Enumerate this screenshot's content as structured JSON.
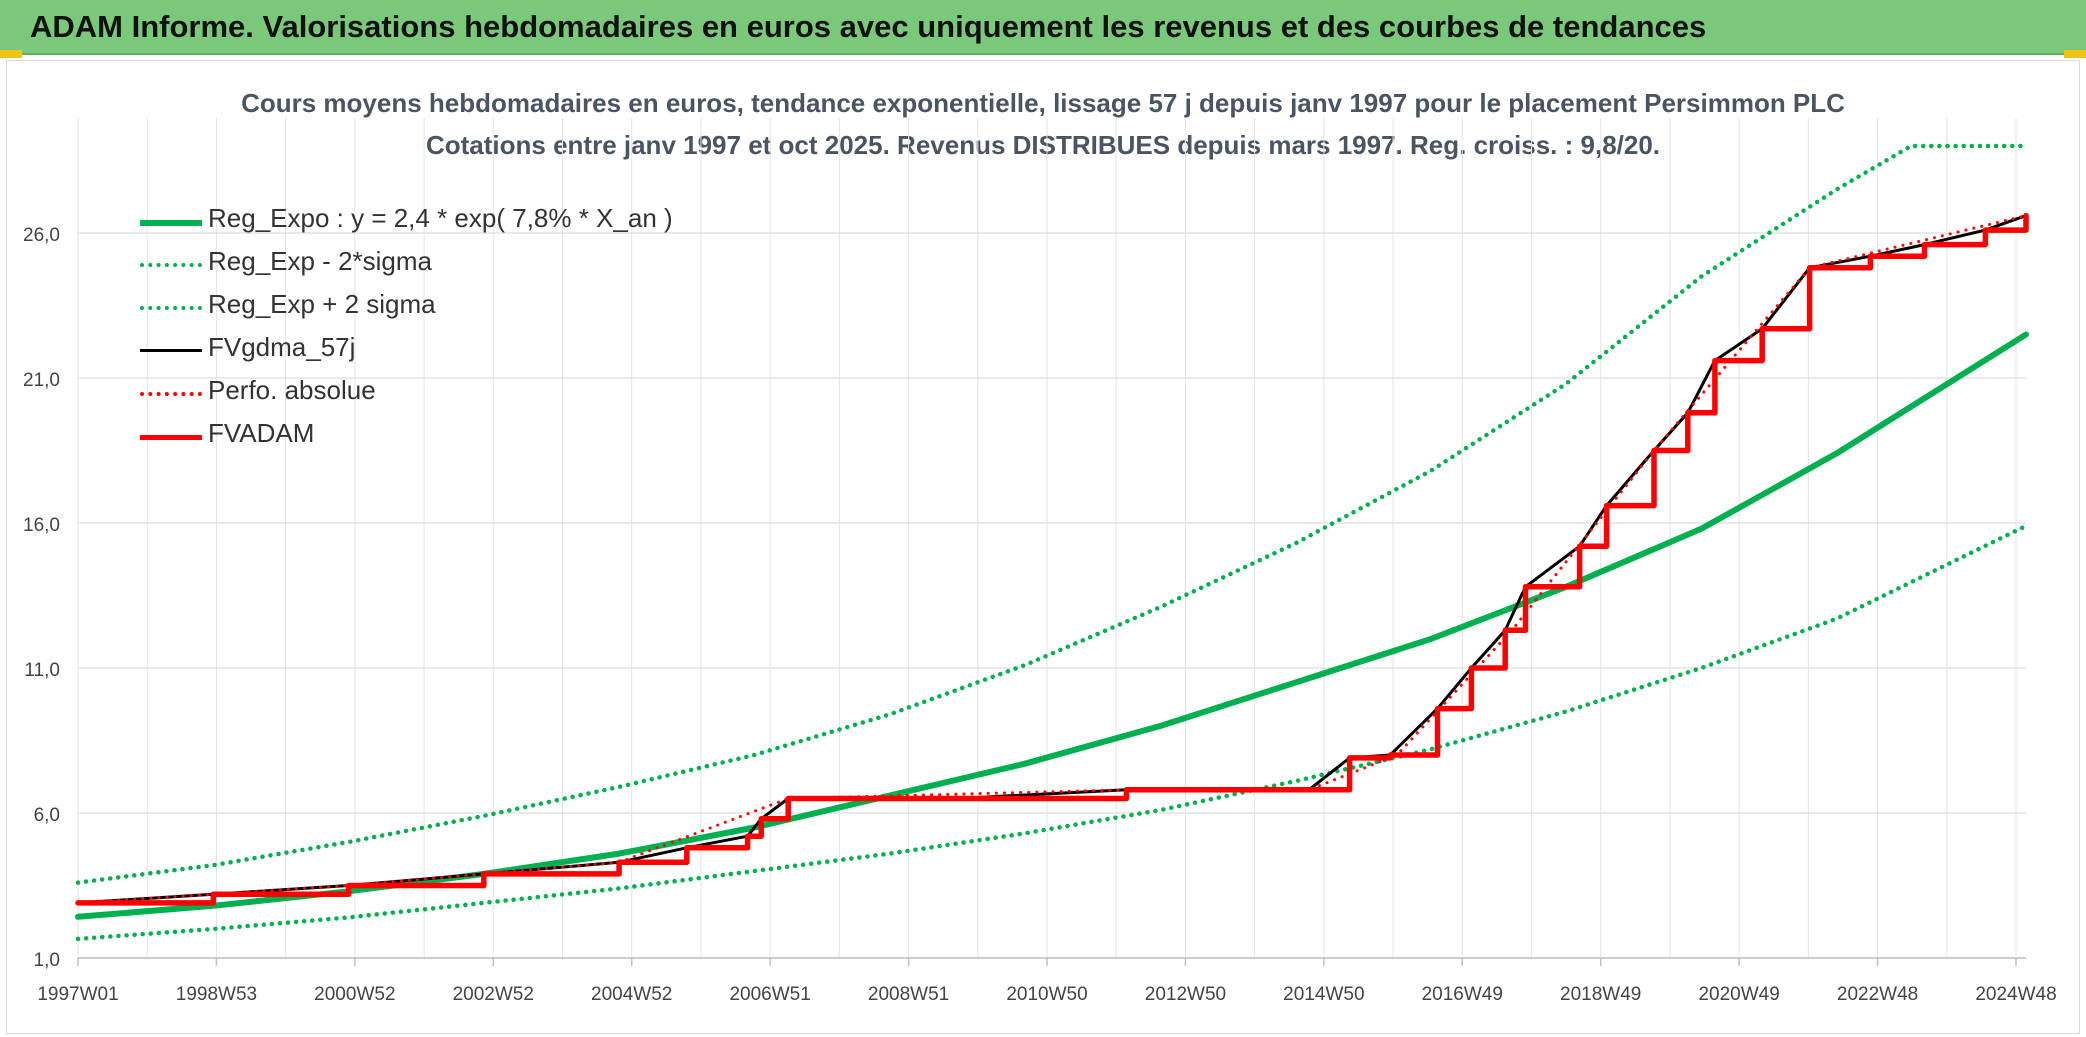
{
  "header": {
    "title": "ADAM Informe. Valorisations hebdomadaires en euros avec uniquement les revenus et des courbes de tendances"
  },
  "colors": {
    "banner": "#7ac87a",
    "reg_green": "#00b050",
    "fv_black": "#000000",
    "adam_red": "#ff0000",
    "grid": "#e3e3e3"
  },
  "chart_data": {
    "type": "line",
    "title": "Cours moyens hebdomadaires en euros, tendance exponentielle, lissage 57 j depuis janv 1997 pour le placement Persimmon PLC",
    "subtitle": "Cotations entre janv 1997 et oct 2025. Revenus DISTRIBUES depuis mars 1997. Reg. croiss. : 9,8/20.",
    "x_tick_labels": [
      "1997W01",
      "1998W53",
      "2000W52",
      "2002W52",
      "2004W52",
      "2006W51",
      "2008W51",
      "2010W50",
      "2012W50",
      "2014W50",
      "2016W49",
      "2018W49",
      "2020W49",
      "2022W48",
      "2024W48"
    ],
    "y_tick_labels": [
      "1,0",
      "6,0",
      "11,0",
      "16,0",
      "21,0",
      "26,0"
    ],
    "ylim": [
      1,
      29
    ],
    "xlim": [
      1997.0,
      2025.8
    ],
    "grid": true,
    "legend_position": "top-left",
    "series": [
      {
        "name": "Reg_Expo : y = 2,4 * exp( 7,8% *  X_an )",
        "style": "solid",
        "color": "#00b050",
        "x": [
          1997,
          1999,
          2001,
          2003,
          2005,
          2007,
          2009,
          2011,
          2013,
          2015,
          2017,
          2019,
          2021,
          2023,
          2025.8
        ],
        "values": [
          2.42,
          2.8,
          3.3,
          3.9,
          4.6,
          5.5,
          6.6,
          7.7,
          9.0,
          10.5,
          12.0,
          13.8,
          15.8,
          18.4,
          22.5
        ]
      },
      {
        "name": "Reg_Exp - 2*sigma",
        "style": "dotted",
        "color": "#00b050",
        "x": [
          1997,
          1999,
          2001,
          2003,
          2005,
          2007,
          2009,
          2011,
          2013,
          2015,
          2017,
          2019,
          2021,
          2023,
          2025.8
        ],
        "values": [
          1.66,
          2.0,
          2.4,
          2.9,
          3.4,
          4.0,
          4.6,
          5.3,
          6.1,
          7.1,
          8.2,
          9.5,
          11.0,
          12.7,
          15.9
        ]
      },
      {
        "name": "Reg_Exp + 2 sigma",
        "style": "dotted",
        "color": "#00b050",
        "x": [
          1997,
          1999,
          2001,
          2003,
          2005,
          2007,
          2009,
          2011,
          2013,
          2015,
          2017,
          2019,
          2021,
          2023,
          2024.1,
          2025.8
        ],
        "values": [
          3.6,
          4.2,
          5.0,
          5.9,
          6.9,
          8.0,
          9.4,
          11.1,
          13.1,
          15.3,
          17.8,
          20.8,
          24.5,
          27.5,
          29.0,
          29.0
        ]
      },
      {
        "name": "FVgdma_57j",
        "style": "solid",
        "color": "#000000",
        "x": [
          1997,
          1999,
          2001,
          2003,
          2005,
          2006,
          2006.9,
          2007.1,
          2007.5,
          2010,
          2012.5,
          2015.2,
          2015.8,
          2016.4,
          2017.1,
          2017.6,
          2018.1,
          2018.4,
          2019.2,
          2019.6,
          2020.3,
          2020.8,
          2021.2,
          2021.9,
          2022.6,
          2023.5,
          2024.3,
          2025.2,
          2025.8
        ],
        "values": [
          2.9,
          3.2,
          3.5,
          3.9,
          4.3,
          4.8,
          5.2,
          5.8,
          6.5,
          6.5,
          6.8,
          6.8,
          7.9,
          8.0,
          9.6,
          11.0,
          12.3,
          13.8,
          15.2,
          16.6,
          18.5,
          19.8,
          21.6,
          22.7,
          24.8,
          25.2,
          25.6,
          26.1,
          26.6
        ]
      },
      {
        "name": "Perfo. absolue",
        "style": "dotted",
        "color": "#ff0000",
        "x": [
          1997,
          2001,
          2005,
          2007.5,
          2012.5,
          2015.2,
          2016.5,
          2018.2,
          2020.3,
          2022.6,
          2025.8
        ],
        "values": [
          2.9,
          3.5,
          4.3,
          6.5,
          6.8,
          6.8,
          8.0,
          12.3,
          18.5,
          24.8,
          26.6
        ]
      },
      {
        "name": "FVADAM",
        "style": "solid",
        "color": "#ff0000",
        "x": [
          1997,
          1999,
          2001,
          2003,
          2005,
          2006,
          2006.9,
          2007.1,
          2007.5,
          2010,
          2012.5,
          2015.2,
          2015.8,
          2016.4,
          2017.1,
          2017.6,
          2018.1,
          2018.4,
          2019.2,
          2019.6,
          2020.3,
          2020.8,
          2021.2,
          2021.9,
          2022.6,
          2023.5,
          2024.3,
          2025.2,
          2025.8
        ],
        "values": [
          2.9,
          3.2,
          3.5,
          3.9,
          4.3,
          4.8,
          5.2,
          5.8,
          6.5,
          6.5,
          6.8,
          6.8,
          7.9,
          8.0,
          9.6,
          11.0,
          12.3,
          13.8,
          15.2,
          16.6,
          18.5,
          19.8,
          21.6,
          22.7,
          24.8,
          25.2,
          25.6,
          26.1,
          26.6
        ]
      }
    ]
  }
}
